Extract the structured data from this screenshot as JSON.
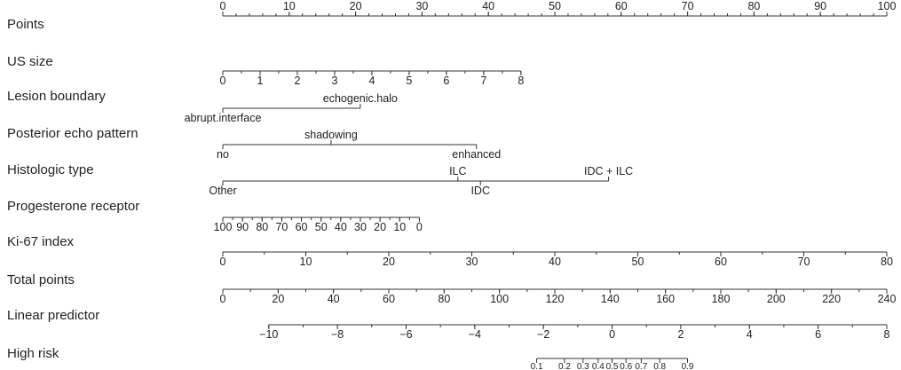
{
  "chart_data": {
    "type": "nomogram",
    "rows": [
      {
        "key": "points",
        "label": "Points",
        "axis": {
          "min": 0,
          "max": 100,
          "labels": [
            0,
            10,
            20,
            30,
            40,
            50,
            60,
            70,
            80,
            90,
            100
          ],
          "minor_step": 2,
          "label_pos": "above"
        }
      },
      {
        "key": "us_size",
        "label": "US size",
        "axis": {
          "min": 0,
          "max": 8,
          "points_min": 0,
          "points_max": 44.9,
          "labels": [
            0,
            1,
            2,
            3,
            4,
            5,
            6,
            7,
            8
          ],
          "minor_step": 0.5,
          "label_pos": "below"
        }
      },
      {
        "key": "lesion_boundary",
        "label": "Lesion boundary",
        "levels": [
          {
            "label": "abrupt.interface",
            "points": 0,
            "pos": "below"
          },
          {
            "label": "echogenic.halo",
            "points": 20.7,
            "pos": "above"
          }
        ]
      },
      {
        "key": "posterior_echo",
        "label": "Posterior echo pattern",
        "levels": [
          {
            "label": "no",
            "points": 0,
            "pos": "below"
          },
          {
            "label": "shadowing",
            "points": 16.3,
            "pos": "above"
          },
          {
            "label": "enhanced",
            "points": 38.2,
            "pos": "below"
          }
        ]
      },
      {
        "key": "histologic_type",
        "label": "Histologic type",
        "levels": [
          {
            "label": "Other",
            "points": 0,
            "pos": "below"
          },
          {
            "label": "ILC",
            "points": 35.4,
            "pos": "above"
          },
          {
            "label": "IDC",
            "points": 38.8,
            "pos": "below"
          },
          {
            "label": "IDC + ILC",
            "points": 58.1,
            "pos": "above"
          }
        ]
      },
      {
        "key": "progesterone",
        "label": "Progesterone receptor",
        "axis": {
          "min": 100,
          "max": 0,
          "points_min": 0,
          "points_max": 29.6,
          "labels": [
            100,
            90,
            80,
            70,
            60,
            50,
            40,
            30,
            20,
            10,
            0
          ],
          "minor_step": 5,
          "label_pos": "below"
        }
      },
      {
        "key": "ki67",
        "label": "Ki-67 index",
        "axis": {
          "min": 0,
          "max": 80,
          "points_min": 0,
          "points_max": 100,
          "labels": [
            0,
            10,
            20,
            30,
            40,
            50,
            60,
            70,
            80
          ],
          "minor_step": 5,
          "label_pos": "below"
        }
      },
      {
        "key": "total_points",
        "label": "Total points",
        "axis": {
          "min": 0,
          "max": 240,
          "points_min": 0,
          "points_max": 100,
          "labels": [
            0,
            20,
            40,
            60,
            80,
            100,
            120,
            140,
            160,
            180,
            200,
            220,
            240
          ],
          "minor_step": 10,
          "label_pos": "below"
        }
      },
      {
        "key": "linear_predictor",
        "label": "Linear predictor",
        "axis": {
          "min": -10,
          "max": 8,
          "points_min": 6.92,
          "points_max": 100,
          "labels": [
            "−10",
            "−8",
            "−6",
            "−4",
            "−2",
            "0",
            "2",
            "4",
            "6",
            "8"
          ],
          "label_values": [
            -10,
            -8,
            -6,
            -4,
            -2,
            0,
            2,
            4,
            6,
            8
          ],
          "minor_step": 1,
          "label_pos": "below"
        }
      },
      {
        "key": "high_risk",
        "label": "High risk",
        "axis": {
          "type": "logit",
          "labels": [
            "0.1",
            "0.2",
            "0.3",
            "0.4",
            "0.5",
            "0.6",
            "0.7",
            "0.8",
            "0.9"
          ],
          "label_values": [
            0.1,
            0.2,
            0.3,
            0.4,
            0.5,
            0.6,
            0.7,
            0.8,
            0.9
          ],
          "lp_intercept": 0,
          "label_pos": "below",
          "small": true
        }
      }
    ]
  }
}
